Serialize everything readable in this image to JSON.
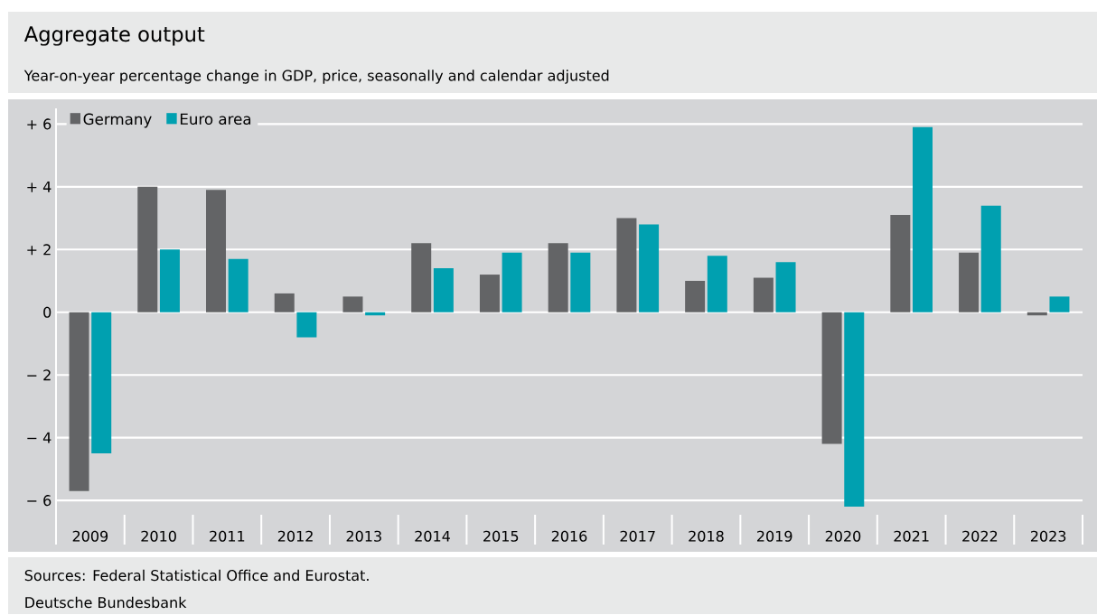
{
  "chart_data": {
    "type": "bar",
    "title": "Aggregate output",
    "subtitle": "Year-on-year percentage change in GDP, price, seasonally and calendar adjusted",
    "categories": [
      "2009",
      "2010",
      "2011",
      "2012",
      "2013",
      "2014",
      "2015",
      "2016",
      "2017",
      "2018",
      "2019",
      "2020",
      "2021",
      "2022",
      "2023"
    ],
    "series": [
      {
        "name": "Germany",
        "color": "#636466",
        "values": [
          -5.7,
          4.0,
          3.9,
          0.6,
          0.5,
          2.2,
          1.2,
          2.2,
          3.0,
          1.0,
          1.1,
          -4.2,
          3.1,
          1.9,
          -0.1
        ]
      },
      {
        "name": "Euro area",
        "color": "#00a0b0",
        "values": [
          -4.5,
          2.0,
          1.7,
          -0.8,
          -0.1,
          1.4,
          1.9,
          1.9,
          2.8,
          1.8,
          1.6,
          -6.2,
          5.9,
          3.4,
          0.5
        ]
      }
    ],
    "ylim": [
      -6.6,
      6.5
    ],
    "yticks": [
      {
        "value": -6,
        "label": "− 6"
      },
      {
        "value": -4,
        "label": "− 4"
      },
      {
        "value": -2,
        "label": "− 2"
      },
      0,
      {
        "value": 2,
        "label": "+ 2"
      },
      {
        "value": 4,
        "label": "+ 4"
      },
      {
        "value": 6,
        "label": "+ 6"
      }
    ],
    "grid": "y",
    "legend": "top left",
    "annotations": [
      "Sources: Federal Statistical Office and Eurostat.",
      "Deutsche Bundesbank"
    ]
  }
}
